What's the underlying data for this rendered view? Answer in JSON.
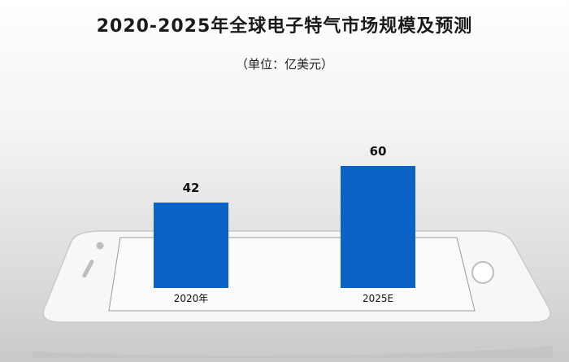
{
  "chart_data": {
    "type": "bar",
    "title": "2020-2025年全球电子特气市场规模及预测",
    "subtitle": "（单位：亿美元）",
    "categories": [
      "2020年",
      "2025E"
    ],
    "values": [
      42,
      60
    ],
    "data_labels": [
      "42",
      "60"
    ],
    "bar_color": "#0b63c7",
    "ylim": [
      0,
      70
    ],
    "grid": false,
    "legend": "none"
  },
  "decoration": {
    "phone_body_color": "#f6f6f6",
    "phone_border_color": "#c7c7c7"
  }
}
